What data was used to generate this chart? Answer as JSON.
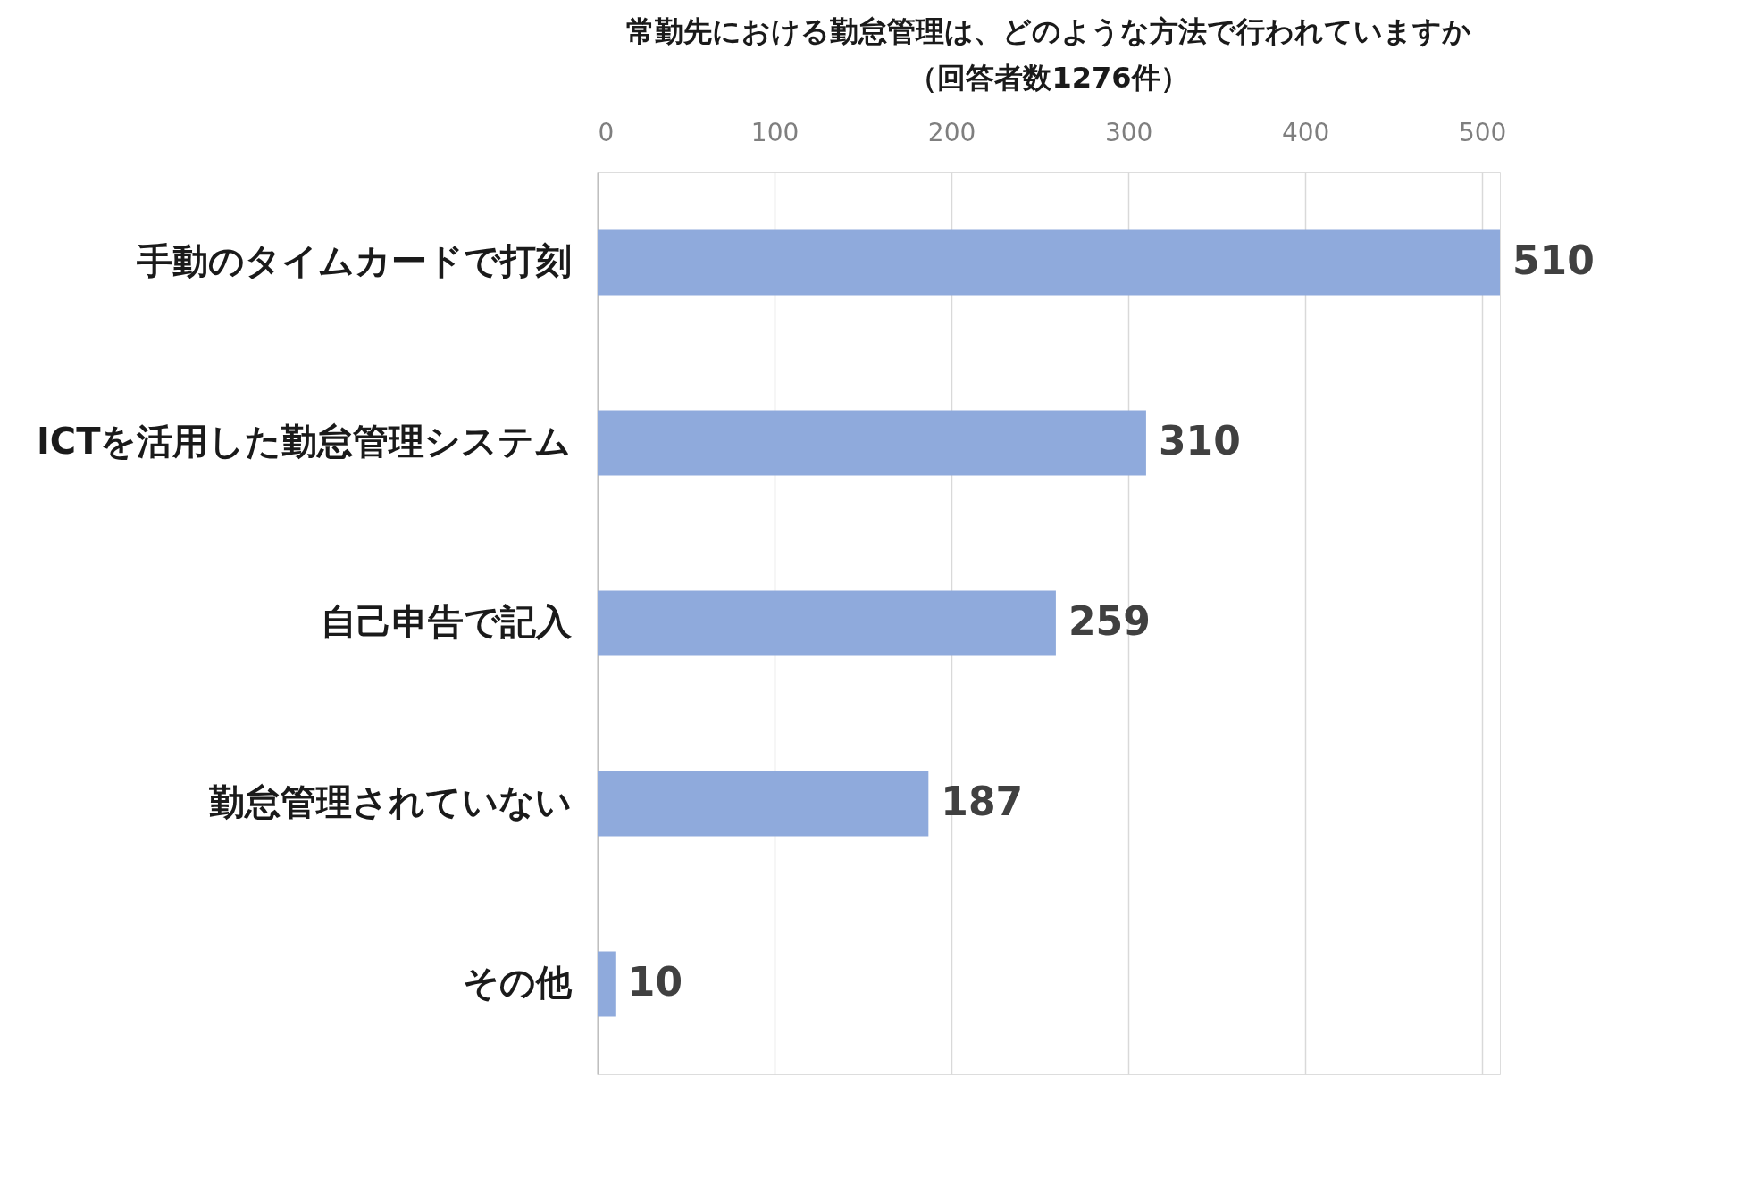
{
  "chart_data": {
    "type": "bar",
    "orientation": "horizontal",
    "title": "常勤先における勤怠管理は、どのような方法で行われていますか",
    "subtitle": "（回答者数1276件）",
    "categories": [
      "手動のタイムカードで打刻",
      "ICTを活用した勤怠管理システム",
      "自己申告で記入",
      "勤怠管理されていない",
      "その他"
    ],
    "values": [
      510,
      310,
      259,
      187,
      10
    ],
    "color": "#8faadc",
    "xlim": [
      0,
      510
    ],
    "xticks": [
      0,
      100,
      200,
      300,
      400,
      500
    ],
    "grid": "x",
    "data_labels": true
  }
}
